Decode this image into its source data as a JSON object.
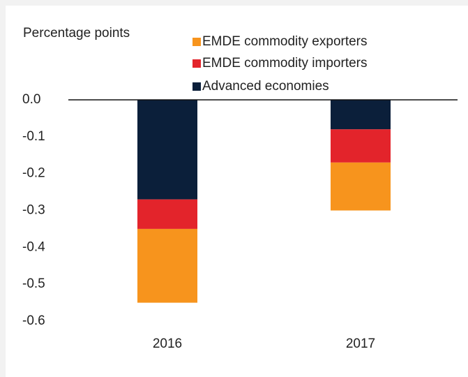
{
  "chart_data": {
    "type": "stacked-bar",
    "y_label": "Percentage points",
    "categories": [
      "2016",
      "2017"
    ],
    "series": [
      {
        "name": "EMDE commodity exporters",
        "color": "#f7941d",
        "values": [
          -0.2,
          -0.13
        ]
      },
      {
        "name": "EMDE commodity importers",
        "color": "#e3242b",
        "values": [
          -0.08,
          -0.09
        ]
      },
      {
        "name": "Advanced economies",
        "color": "#0b1f3a",
        "values": [
          -0.27,
          -0.08
        ]
      }
    ],
    "ylim": [
      0,
      -0.6
    ],
    "yticks": [
      {
        "value": 0,
        "label": "0.0"
      },
      -0.1,
      -0.2,
      -0.3,
      -0.4,
      -0.5,
      -0.6
    ]
  }
}
